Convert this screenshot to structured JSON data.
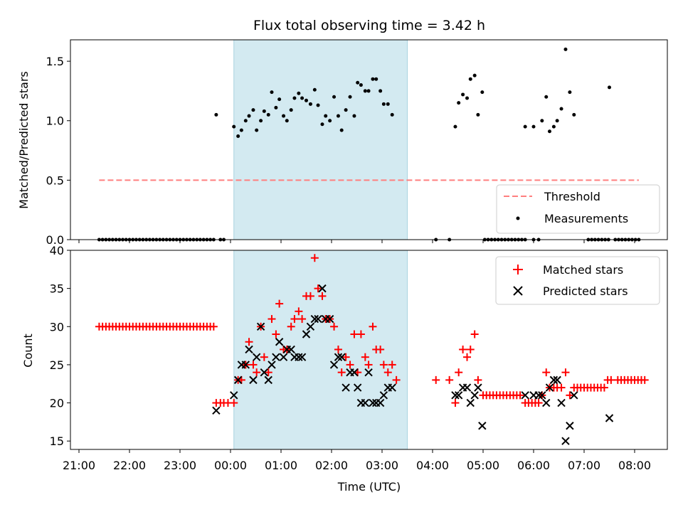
{
  "chart_data": {
    "type": "scatter",
    "title": "Flux total observing time = 3.42 h",
    "shaded_region": {
      "start": "00:04",
      "end": "03:30",
      "color": "#d3eaf1"
    },
    "x_ticks": [
      "21:00",
      "22:00",
      "23:00",
      "00:00",
      "01:00",
      "02:00",
      "03:00",
      "04:00",
      "05:00",
      "06:00",
      "07:00",
      "08:00"
    ],
    "xlabel": "Time (UTC)",
    "top": {
      "ylabel": "Matched/Predicted stars",
      "ylim": [
        0,
        1.68
      ],
      "y_ticks": [
        "0.0",
        "0.5",
        "1.0",
        "1.5"
      ],
      "threshold": {
        "name": "Threshold",
        "value": 0.5,
        "from": "21:24",
        "to": "08:05",
        "color": "#ff7f7f"
      },
      "measurements_name": "Measurements",
      "measurements": [
        [
          "21:24",
          0
        ],
        [
          "21:28",
          0
        ],
        [
          "21:32",
          0
        ],
        [
          "21:36",
          0
        ],
        [
          "21:40",
          0
        ],
        [
          "21:44",
          0
        ],
        [
          "21:48",
          0
        ],
        [
          "21:52",
          0
        ],
        [
          "21:56",
          0
        ],
        [
          "22:00",
          0
        ],
        [
          "22:04",
          0
        ],
        [
          "22:08",
          0
        ],
        [
          "22:12",
          0
        ],
        [
          "22:16",
          0
        ],
        [
          "22:20",
          0
        ],
        [
          "22:24",
          0
        ],
        [
          "22:28",
          0
        ],
        [
          "22:32",
          0
        ],
        [
          "22:36",
          0
        ],
        [
          "22:40",
          0
        ],
        [
          "22:44",
          0
        ],
        [
          "22:48",
          0
        ],
        [
          "22:52",
          0
        ],
        [
          "22:56",
          0
        ],
        [
          "23:00",
          0
        ],
        [
          "23:04",
          0
        ],
        [
          "23:08",
          0
        ],
        [
          "23:12",
          0
        ],
        [
          "23:16",
          0
        ],
        [
          "23:20",
          0
        ],
        [
          "23:24",
          0
        ],
        [
          "23:28",
          0
        ],
        [
          "23:32",
          0
        ],
        [
          "23:36",
          0
        ],
        [
          "23:40",
          0
        ],
        [
          "23:48",
          0
        ],
        [
          "23:52",
          0
        ],
        [
          "23:43",
          1.05
        ],
        [
          "00:04",
          0.95
        ],
        [
          "00:09",
          0.87
        ],
        [
          "00:13",
          0.92
        ],
        [
          "00:18",
          1.0
        ],
        [
          "00:22",
          1.04
        ],
        [
          "00:27",
          1.09
        ],
        [
          "00:31",
          0.92
        ],
        [
          "00:36",
          1.0
        ],
        [
          "00:40",
          1.08
        ],
        [
          "00:45",
          1.05
        ],
        [
          "00:49",
          1.24
        ],
        [
          "00:54",
          1.11
        ],
        [
          "00:58",
          1.18
        ],
        [
          "01:03",
          1.04
        ],
        [
          "01:07",
          1.0
        ],
        [
          "01:12",
          1.09
        ],
        [
          "01:16",
          1.19
        ],
        [
          "01:21",
          1.23
        ],
        [
          "01:25",
          1.19
        ],
        [
          "01:30",
          1.17
        ],
        [
          "01:35",
          1.14
        ],
        [
          "01:40",
          1.26
        ],
        [
          "01:44",
          1.13
        ],
        [
          "01:49",
          0.97
        ],
        [
          "01:53",
          1.04
        ],
        [
          "01:58",
          1.0
        ],
        [
          "02:03",
          1.2
        ],
        [
          "02:08",
          1.04
        ],
        [
          "02:12",
          0.92
        ],
        [
          "02:17",
          1.09
        ],
        [
          "02:22",
          1.2
        ],
        [
          "02:27",
          1.04
        ],
        [
          "02:31",
          1.32
        ],
        [
          "02:35",
          1.3
        ],
        [
          "02:40",
          1.25
        ],
        [
          "02:44",
          1.25
        ],
        [
          "02:49",
          1.35
        ],
        [
          "02:53",
          1.35
        ],
        [
          "02:58",
          1.25
        ],
        [
          "03:02",
          1.14
        ],
        [
          "03:07",
          1.14
        ],
        [
          "03:12",
          1.05
        ],
        [
          "04:04",
          0
        ],
        [
          "04:20",
          0
        ],
        [
          "04:27",
          0.95
        ],
        [
          "04:31",
          1.15
        ],
        [
          "04:36",
          1.22
        ],
        [
          "04:41",
          1.19
        ],
        [
          "04:45",
          1.35
        ],
        [
          "04:50",
          1.38
        ],
        [
          "04:54",
          1.05
        ],
        [
          "04:59",
          1.24
        ],
        [
          "05:02",
          0
        ],
        [
          "05:06",
          0
        ],
        [
          "05:10",
          0
        ],
        [
          "05:14",
          0
        ],
        [
          "05:18",
          0
        ],
        [
          "05:22",
          0
        ],
        [
          "05:26",
          0
        ],
        [
          "05:30",
          0
        ],
        [
          "05:34",
          0
        ],
        [
          "05:38",
          0
        ],
        [
          "05:42",
          0
        ],
        [
          "05:46",
          0
        ],
        [
          "05:50",
          0
        ],
        [
          "06:00",
          0
        ],
        [
          "06:06",
          0
        ],
        [
          "05:50",
          0.95
        ],
        [
          "06:00",
          0.95
        ],
        [
          "06:10",
          1.0
        ],
        [
          "06:15",
          1.2
        ],
        [
          "06:19",
          0.91
        ],
        [
          "06:24",
          0.95
        ],
        [
          "06:28",
          1.0
        ],
        [
          "06:33",
          1.1
        ],
        [
          "06:38",
          1.6
        ],
        [
          "06:43",
          1.24
        ],
        [
          "06:48",
          1.05
        ],
        [
          "07:30",
          1.28
        ],
        [
          "07:05",
          0
        ],
        [
          "07:09",
          0
        ],
        [
          "07:13",
          0
        ],
        [
          "07:17",
          0
        ],
        [
          "07:21",
          0
        ],
        [
          "07:25",
          0
        ],
        [
          "07:29",
          0
        ],
        [
          "07:37",
          0
        ],
        [
          "07:41",
          0
        ],
        [
          "07:45",
          0
        ],
        [
          "07:49",
          0
        ],
        [
          "07:53",
          0
        ],
        [
          "07:57",
          0
        ],
        [
          "08:01",
          0
        ],
        [
          "08:05",
          0
        ]
      ]
    },
    "bottom": {
      "ylabel": "Count",
      "ylim": [
        13.9,
        40
      ],
      "y_ticks": [
        "15",
        "20",
        "25",
        "30",
        "35",
        "40"
      ],
      "matched_name": "Matched stars",
      "predicted_name": "Predicted stars",
      "matched_color": "#ff0000",
      "predicted_color": "#000000",
      "matched": [
        [
          "21:24",
          30
        ],
        [
          "21:28",
          30
        ],
        [
          "21:32",
          30
        ],
        [
          "21:36",
          30
        ],
        [
          "21:40",
          30
        ],
        [
          "21:44",
          30
        ],
        [
          "21:48",
          30
        ],
        [
          "21:52",
          30
        ],
        [
          "21:56",
          30
        ],
        [
          "22:00",
          30
        ],
        [
          "22:04",
          30
        ],
        [
          "22:08",
          30
        ],
        [
          "22:12",
          30
        ],
        [
          "22:16",
          30
        ],
        [
          "22:20",
          30
        ],
        [
          "22:24",
          30
        ],
        [
          "22:28",
          30
        ],
        [
          "22:32",
          30
        ],
        [
          "22:36",
          30
        ],
        [
          "22:40",
          30
        ],
        [
          "22:44",
          30
        ],
        [
          "22:48",
          30
        ],
        [
          "22:52",
          30
        ],
        [
          "22:56",
          30
        ],
        [
          "23:00",
          30
        ],
        [
          "23:04",
          30
        ],
        [
          "23:08",
          30
        ],
        [
          "23:12",
          30
        ],
        [
          "23:16",
          30
        ],
        [
          "23:20",
          30
        ],
        [
          "23:24",
          30
        ],
        [
          "23:28",
          30
        ],
        [
          "23:32",
          30
        ],
        [
          "23:36",
          30
        ],
        [
          "23:40",
          30
        ],
        [
          "23:43",
          20
        ],
        [
          "23:48",
          20
        ],
        [
          "23:52",
          20
        ],
        [
          "23:57",
          20
        ],
        [
          "00:04",
          20
        ],
        [
          "00:09",
          23
        ],
        [
          "00:13",
          23
        ],
        [
          "00:18",
          25
        ],
        [
          "00:22",
          28
        ],
        [
          "00:27",
          25
        ],
        [
          "00:31",
          24
        ],
        [
          "00:36",
          30
        ],
        [
          "00:40",
          26
        ],
        [
          "00:45",
          24
        ],
        [
          "00:49",
          31
        ],
        [
          "00:54",
          29
        ],
        [
          "00:58",
          33
        ],
        [
          "01:03",
          27
        ],
        [
          "01:07",
          27
        ],
        [
          "01:12",
          30
        ],
        [
          "01:16",
          31
        ],
        [
          "01:21",
          32
        ],
        [
          "01:25",
          31
        ],
        [
          "01:30",
          34
        ],
        [
          "01:35",
          34
        ],
        [
          "01:40",
          39
        ],
        [
          "01:44",
          35
        ],
        [
          "01:49",
          34
        ],
        [
          "01:53",
          31
        ],
        [
          "01:58",
          31
        ],
        [
          "02:03",
          30
        ],
        [
          "02:08",
          27
        ],
        [
          "02:12",
          24
        ],
        [
          "02:17",
          26
        ],
        [
          "02:22",
          25
        ],
        [
          "02:27",
          29
        ],
        [
          "02:31",
          24
        ],
        [
          "02:35",
          29
        ],
        [
          "02:40",
          26
        ],
        [
          "02:44",
          25
        ],
        [
          "02:49",
          30
        ],
        [
          "02:53",
          27
        ],
        [
          "02:58",
          27
        ],
        [
          "03:02",
          25
        ],
        [
          "03:07",
          24
        ],
        [
          "03:12",
          25
        ],
        [
          "03:17",
          23
        ],
        [
          "04:04",
          23
        ],
        [
          "04:20",
          23
        ],
        [
          "04:27",
          20
        ],
        [
          "04:31",
          24
        ],
        [
          "04:36",
          27
        ],
        [
          "04:41",
          26
        ],
        [
          "04:45",
          27
        ],
        [
          "04:50",
          29
        ],
        [
          "04:54",
          23
        ],
        [
          "05:00",
          21
        ],
        [
          "05:04",
          21
        ],
        [
          "05:08",
          21
        ],
        [
          "05:12",
          21
        ],
        [
          "05:16",
          21
        ],
        [
          "05:20",
          21
        ],
        [
          "05:24",
          21
        ],
        [
          "05:28",
          21
        ],
        [
          "05:32",
          21
        ],
        [
          "05:36",
          21
        ],
        [
          "05:40",
          21
        ],
        [
          "05:44",
          21
        ],
        [
          "05:50",
          20
        ],
        [
          "05:54",
          20
        ],
        [
          "05:58",
          20
        ],
        [
          "06:02",
          20
        ],
        [
          "06:06",
          20
        ],
        [
          "06:10",
          21
        ],
        [
          "06:15",
          24
        ],
        [
          "06:19",
          22
        ],
        [
          "06:24",
          22
        ],
        [
          "06:28",
          22
        ],
        [
          "06:33",
          22
        ],
        [
          "06:38",
          24
        ],
        [
          "06:43",
          21
        ],
        [
          "06:48",
          22
        ],
        [
          "06:52",
          22
        ],
        [
          "06:56",
          22
        ],
        [
          "07:00",
          22
        ],
        [
          "07:04",
          22
        ],
        [
          "07:08",
          22
        ],
        [
          "07:12",
          22
        ],
        [
          "07:16",
          22
        ],
        [
          "07:20",
          22
        ],
        [
          "07:24",
          22
        ],
        [
          "07:28",
          23
        ],
        [
          "07:32",
          23
        ],
        [
          "07:40",
          23
        ],
        [
          "07:44",
          23
        ],
        [
          "07:48",
          23
        ],
        [
          "07:52",
          23
        ],
        [
          "07:56",
          23
        ],
        [
          "08:00",
          23
        ],
        [
          "08:04",
          23
        ],
        [
          "08:08",
          23
        ],
        [
          "08:12",
          23
        ]
      ],
      "predicted": [
        [
          "23:43",
          19
        ],
        [
          "00:04",
          21
        ],
        [
          "00:09",
          23
        ],
        [
          "00:13",
          25
        ],
        [
          "00:18",
          25
        ],
        [
          "00:22",
          27
        ],
        [
          "00:27",
          23
        ],
        [
          "00:31",
          26
        ],
        [
          "00:36",
          30
        ],
        [
          "00:40",
          24
        ],
        [
          "00:45",
          23
        ],
        [
          "00:49",
          25
        ],
        [
          "00:54",
          26
        ],
        [
          "00:58",
          28
        ],
        [
          "01:03",
          26
        ],
        [
          "01:07",
          27
        ],
        [
          "01:12",
          27
        ],
        [
          "01:16",
          26
        ],
        [
          "01:21",
          26
        ],
        [
          "01:25",
          26
        ],
        [
          "01:30",
          29
        ],
        [
          "01:35",
          30
        ],
        [
          "01:40",
          31
        ],
        [
          "01:44",
          31
        ],
        [
          "01:49",
          35
        ],
        [
          "01:53",
          31
        ],
        [
          "01:58",
          31
        ],
        [
          "02:03",
          25
        ],
        [
          "02:08",
          26
        ],
        [
          "02:12",
          26
        ],
        [
          "02:17",
          22
        ],
        [
          "02:22",
          24
        ],
        [
          "02:27",
          24
        ],
        [
          "02:31",
          22
        ],
        [
          "02:35",
          20
        ],
        [
          "02:40",
          20
        ],
        [
          "02:44",
          24
        ],
        [
          "02:49",
          20
        ],
        [
          "02:53",
          20
        ],
        [
          "02:58",
          20
        ],
        [
          "03:02",
          21
        ],
        [
          "03:07",
          22
        ],
        [
          "03:12",
          22
        ],
        [
          "04:27",
          21
        ],
        [
          "04:31",
          21
        ],
        [
          "04:36",
          22
        ],
        [
          "04:41",
          22
        ],
        [
          "04:45",
          20
        ],
        [
          "04:50",
          21
        ],
        [
          "04:54",
          22
        ],
        [
          "04:59",
          17
        ],
        [
          "05:50",
          21
        ],
        [
          "06:00",
          21
        ],
        [
          "06:06",
          21
        ],
        [
          "06:10",
          21
        ],
        [
          "06:15",
          20
        ],
        [
          "06:19",
          22
        ],
        [
          "06:24",
          23
        ],
        [
          "06:28",
          23
        ],
        [
          "06:33",
          20
        ],
        [
          "06:38",
          15
        ],
        [
          "06:43",
          17
        ],
        [
          "06:48",
          21
        ],
        [
          "07:30",
          18
        ]
      ]
    }
  }
}
